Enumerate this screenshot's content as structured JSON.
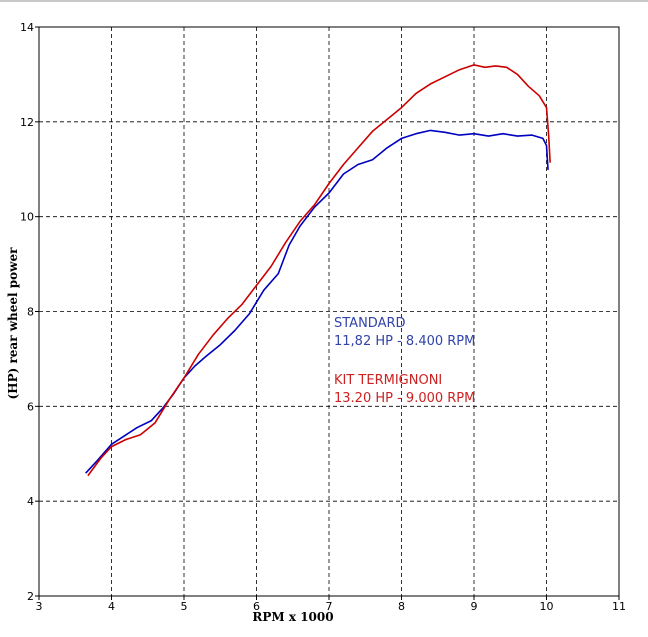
{
  "chart_data": {
    "type": "line",
    "title": "",
    "xlabel": "RPM x 1000",
    "ylabel": "(HP) rear wheel power",
    "xlim": [
      3,
      11
    ],
    "ylim": [
      2,
      14
    ],
    "x_ticks": [
      3,
      4,
      5,
      6,
      7,
      8,
      9,
      10,
      11
    ],
    "y_ticks": [
      2,
      4,
      6,
      8,
      10,
      12,
      14
    ],
    "grid": true,
    "series": [
      {
        "name": "STANDARD",
        "color": "#0000c0",
        "x": [
          3.65,
          3.8,
          4.0,
          4.2,
          4.35,
          4.55,
          4.7,
          4.85,
          5.0,
          5.15,
          5.3,
          5.5,
          5.7,
          5.9,
          6.1,
          6.3,
          6.45,
          6.6,
          6.8,
          7.0,
          7.2,
          7.4,
          7.6,
          7.8,
          8.0,
          8.2,
          8.4,
          8.6,
          8.8,
          9.0,
          9.2,
          9.4,
          9.6,
          9.8,
          9.95,
          10.0,
          10.02
        ],
        "values": [
          4.6,
          4.85,
          5.2,
          5.4,
          5.55,
          5.7,
          5.95,
          6.25,
          6.6,
          6.85,
          7.05,
          7.3,
          7.6,
          7.95,
          8.45,
          8.8,
          9.4,
          9.8,
          10.2,
          10.5,
          10.9,
          11.1,
          11.2,
          11.45,
          11.65,
          11.75,
          11.82,
          11.78,
          11.72,
          11.75,
          11.7,
          11.75,
          11.7,
          11.72,
          11.65,
          11.5,
          11.0
        ]
      },
      {
        "name": "KIT TERMIGNONI",
        "color": "#cc0000",
        "x": [
          3.68,
          3.85,
          4.0,
          4.2,
          4.4,
          4.6,
          4.8,
          5.0,
          5.2,
          5.4,
          5.6,
          5.8,
          6.0,
          6.2,
          6.4,
          6.6,
          6.8,
          7.0,
          7.2,
          7.4,
          7.6,
          7.8,
          8.0,
          8.2,
          8.4,
          8.6,
          8.8,
          9.0,
          9.15,
          9.3,
          9.45,
          9.6,
          9.75,
          9.9,
          10.0,
          10.03,
          10.05
        ],
        "values": [
          4.55,
          4.9,
          5.15,
          5.3,
          5.4,
          5.65,
          6.15,
          6.6,
          7.1,
          7.5,
          7.85,
          8.15,
          8.55,
          8.95,
          9.45,
          9.9,
          10.25,
          10.7,
          11.1,
          11.45,
          11.8,
          12.05,
          12.3,
          12.6,
          12.8,
          12.95,
          13.1,
          13.2,
          13.15,
          13.18,
          13.15,
          13.0,
          12.75,
          12.55,
          12.3,
          11.7,
          11.15
        ]
      }
    ],
    "annotations": [
      {
        "lines": [
          "STANDARD",
          "11,82 HP - 8.400 RPM"
        ],
        "color": "#3344aa"
      },
      {
        "lines": [
          "KIT TERMIGNONI",
          "13.20 HP - 9.000 RPM"
        ],
        "color": "#cc2222"
      }
    ]
  }
}
